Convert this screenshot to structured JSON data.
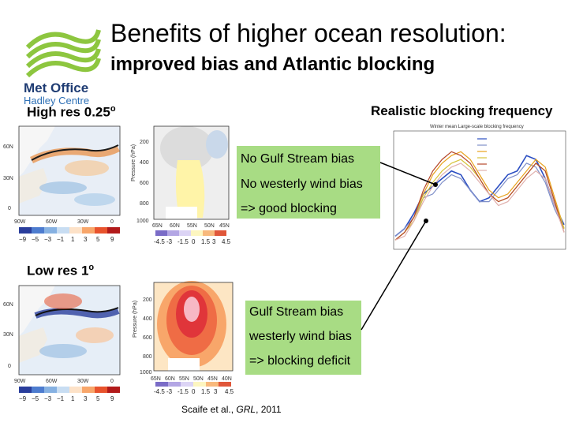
{
  "title": "Benefits of higher ocean resolution:",
  "subtitle": "improved bias and Atlantic blocking",
  "logo": {
    "line1": "Met Office",
    "line2": "Hadley Centre",
    "green": "#8dc63f",
    "blue": "#1f3c73",
    "blue_light": "#2c6fb5"
  },
  "high_res": {
    "label": "High res 0.25",
    "sup": "o"
  },
  "low_res": {
    "label": "Low res 1",
    "sup": "o"
  },
  "blocking_label": "Realistic blocking frequency",
  "high_box": [
    "No Gulf Stream bias",
    "No westerly wind bias",
    "=> good blocking"
  ],
  "low_box": [
    "Gulf Stream bias",
    "westerly wind bias",
    "=> blocking deficit"
  ],
  "citation": {
    "authors": "Scaife et al., ",
    "journal": "GRL",
    "year": ", 2011"
  },
  "map_axes": {
    "lat": [
      "60N",
      "30N",
      "0"
    ],
    "lon_high": [
      "90W",
      "60W",
      "30W",
      "0"
    ],
    "lon_low": [
      "90W",
      "60W",
      "30W",
      "0"
    ]
  },
  "map_colorbar_ticks": [
    "−9",
    "−5",
    "−3",
    "−1",
    "1",
    "3",
    "5",
    "9"
  ],
  "section_axes": {
    "pressure": [
      "200",
      "400",
      "600",
      "800",
      "1000"
    ],
    "ylabel": "Pressure (hPa)",
    "lat_high": [
      "65N",
      "60N",
      "55N",
      "50N",
      "45N"
    ],
    "lat_low": [
      "65N",
      "60N",
      "55N",
      "50N",
      "45N",
      "40N"
    ]
  },
  "section_colorbar_ticks": [
    "-4.5",
    "-3",
    "-1.5",
    "0",
    "1.5",
    "3",
    "4.5"
  ],
  "colors": {
    "box_green": "#a8dc84",
    "obs": "#1f4aa8"
  },
  "chart_data": {
    "type": "line",
    "title": "Winter mean Large-scale blocking frequency",
    "ylim": [
      0,
      0.3
    ],
    "legend_placement": "top-right",
    "series": [
      {
        "color": "#2b4ec2",
        "values": [
          0.03,
          0.05,
          0.09,
          0.14,
          0.16,
          0.18,
          0.2,
          0.19,
          0.15,
          0.12,
          0.13,
          0.16,
          0.19,
          0.2,
          0.24,
          0.23,
          0.18,
          0.11,
          0.06
        ]
      },
      {
        "color": "#7f8fc8",
        "values": [
          0.03,
          0.05,
          0.08,
          0.13,
          0.14,
          0.17,
          0.19,
          0.18,
          0.15,
          0.12,
          0.12,
          0.15,
          0.18,
          0.19,
          0.22,
          0.21,
          0.17,
          0.1,
          0.05
        ]
      },
      {
        "color": "#e8a11b",
        "values": [
          0.02,
          0.04,
          0.08,
          0.14,
          0.19,
          0.22,
          0.24,
          0.25,
          0.23,
          0.19,
          0.15,
          0.13,
          0.14,
          0.17,
          0.2,
          0.23,
          0.21,
          0.13,
          0.05
        ]
      },
      {
        "color": "#d7c338",
        "values": [
          0.02,
          0.04,
          0.07,
          0.13,
          0.17,
          0.2,
          0.22,
          0.23,
          0.21,
          0.18,
          0.14,
          0.12,
          0.13,
          0.16,
          0.19,
          0.22,
          0.2,
          0.12,
          0.05
        ]
      },
      {
        "color": "#b5472a",
        "values": [
          0.02,
          0.04,
          0.08,
          0.15,
          0.2,
          0.23,
          0.25,
          0.24,
          0.22,
          0.18,
          0.14,
          0.12,
          0.13,
          0.16,
          0.19,
          0.22,
          0.2,
          0.12,
          0.04
        ]
      },
      {
        "color": "#e0b0ad",
        "values": [
          0.02,
          0.03,
          0.07,
          0.12,
          0.16,
          0.19,
          0.21,
          0.22,
          0.2,
          0.17,
          0.14,
          0.11,
          0.12,
          0.15,
          0.18,
          0.2,
          0.18,
          0.11,
          0.04
        ]
      }
    ]
  }
}
